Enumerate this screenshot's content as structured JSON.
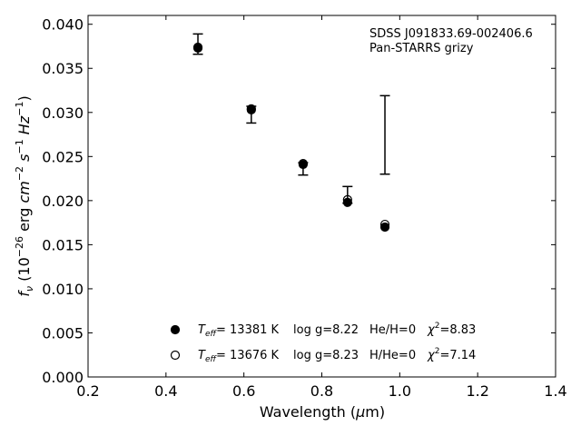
{
  "chart_data": {
    "type": "scatter",
    "xlim": [
      0.2,
      1.4
    ],
    "ylim": [
      0.0,
      0.041
    ],
    "x_ticks": [
      0.2,
      0.4,
      0.6,
      0.8,
      1.0,
      1.2,
      1.4
    ],
    "x_tick_labels": [
      "0.2",
      "0.4",
      "0.6",
      "0.8",
      "1.0",
      "1.2",
      "1.4"
    ],
    "y_ticks": [
      0.0,
      0.005,
      0.01,
      0.015,
      0.02,
      0.025,
      0.03,
      0.035,
      0.04
    ],
    "y_tick_labels": [
      "0.000",
      "0.005",
      "0.010",
      "0.015",
      "0.020",
      "0.025",
      "0.030",
      "0.035",
      "0.040"
    ],
    "xlabel": {
      "main": "Wavelength (",
      "mu": "μ",
      "tail": "m)"
    },
    "ylabel": "f_ν (10^-26 erg cm^-2 s^-1 Hz^-1)",
    "grid": false,
    "annotation": [
      "SDSS J091833.69-002406.6",
      "Pan-STARRS grizy"
    ],
    "observed": {
      "x": [
        0.482,
        0.619,
        0.752,
        0.866,
        0.962
      ],
      "ylow": [
        0.0366,
        0.0288,
        0.0229,
        0.0197,
        0.023
      ],
      "yhigh": [
        0.0389,
        0.0307,
        0.0243,
        0.0216,
        0.0319
      ]
    },
    "series": [
      {
        "marker": "filled",
        "x": [
          0.482,
          0.619,
          0.752,
          0.866,
          0.962
        ],
        "y": [
          0.0373,
          0.0304,
          0.0241,
          0.0198,
          0.017
        ],
        "legend": {
          "teff_pre": "T",
          "teff_sub": "eff",
          "teff_rest": "= 13381 K",
          "logg": "log g=8.22",
          "comp": "He/H=0",
          "chi_pre": "χ",
          "chi_sup": "2",
          "chi_rest": "=8.83"
        }
      },
      {
        "marker": "open",
        "x": [
          0.482,
          0.619,
          0.752,
          0.866,
          0.962
        ],
        "y": [
          0.0374,
          0.0303,
          0.0242,
          0.0201,
          0.0173
        ],
        "legend": {
          "teff_pre": "T",
          "teff_sub": "eff",
          "teff_rest": "= 13676 K",
          "logg": "log g=8.23",
          "comp": "H/He=0",
          "chi_pre": "χ",
          "chi_sup": "2",
          "chi_rest": "=7.14"
        }
      }
    ],
    "legend_position": "lower-center"
  }
}
